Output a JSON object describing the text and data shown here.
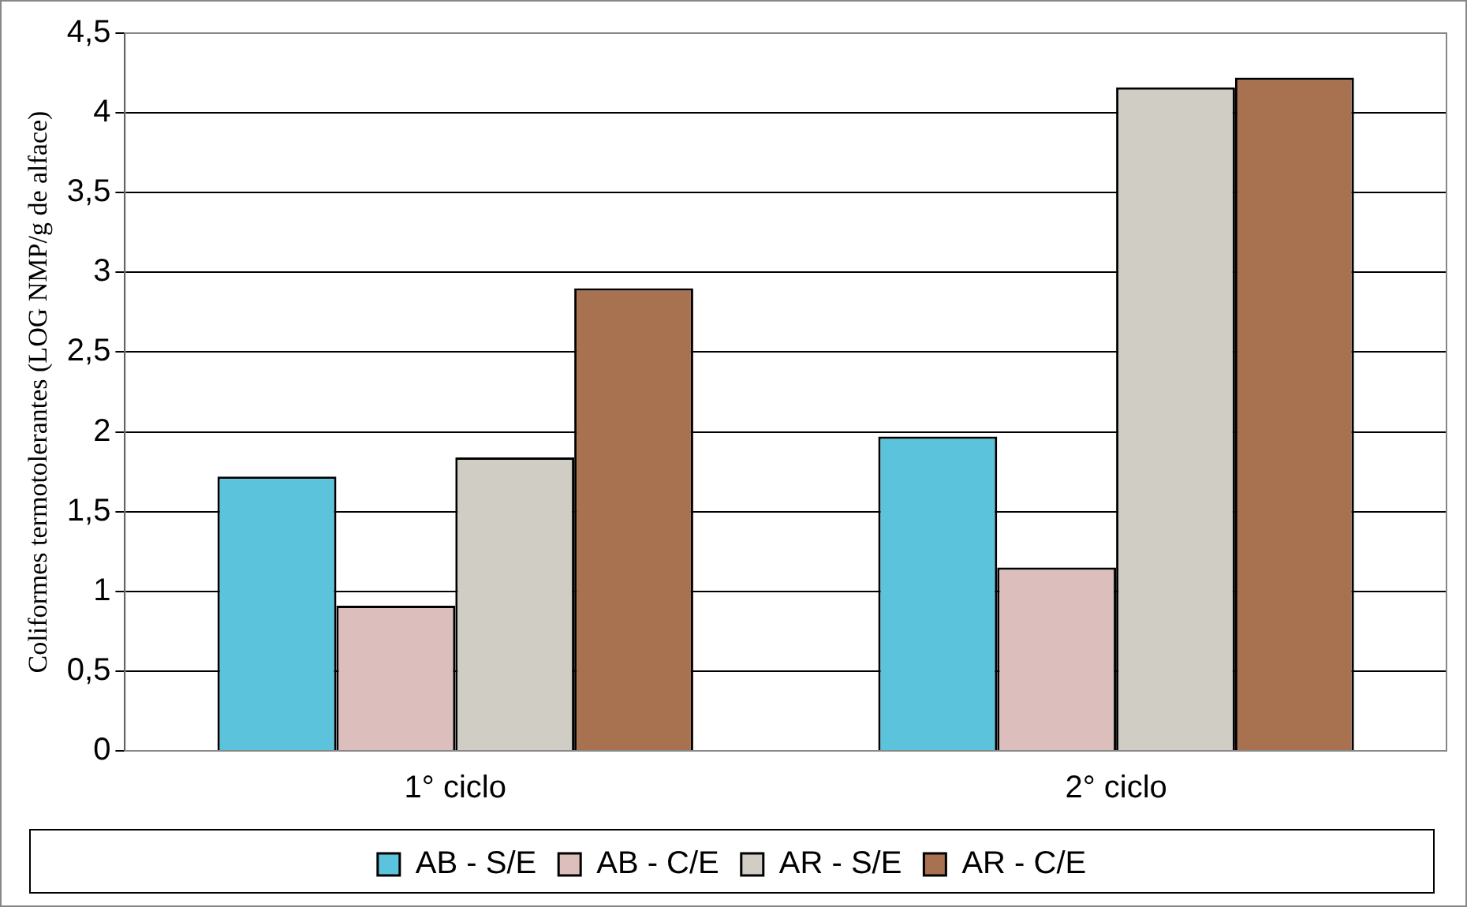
{
  "chart_data": {
    "type": "bar",
    "ylabel": "Coliformes termotolerantes (LOG NMP/g de alface)",
    "categories": [
      "1° ciclo",
      "2° ciclo"
    ],
    "series": [
      {
        "name": "AB - S/E",
        "color": "#5bc4dc",
        "values": [
          1.72,
          1.97
        ]
      },
      {
        "name": "AB - C/E",
        "color": "#dcbfbd",
        "values": [
          0.91,
          1.15
        ]
      },
      {
        "name": "AR - S/E",
        "color": "#d0cdc4",
        "values": [
          1.84,
          4.16
        ]
      },
      {
        "name": "AR - C/E",
        "color": "#a8714f",
        "values": [
          2.9,
          4.22
        ]
      }
    ],
    "ylim": [
      0,
      4.5
    ],
    "yticks": [
      0,
      {
        "value": 0.5,
        "label": "0,5"
      },
      1,
      {
        "value": 1.5,
        "label": "1,5"
      },
      2,
      {
        "value": 2.5,
        "label": "2,5"
      },
      3,
      {
        "value": 3.5,
        "label": "3,5"
      },
      4,
      {
        "value": 4.5,
        "label": "4,5"
      }
    ],
    "grid": "y",
    "legend": "bottom"
  }
}
